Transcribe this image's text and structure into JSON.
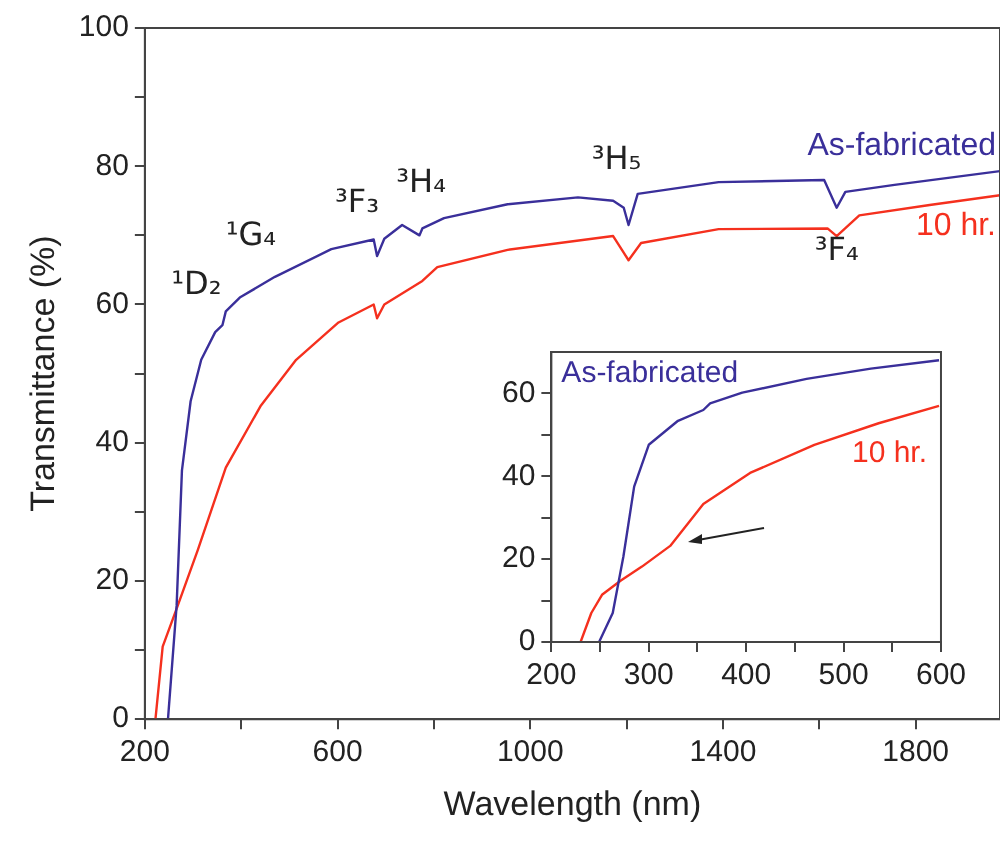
{
  "chart_data": [
    {
      "type": "line",
      "xlabel": "Wavelength (nm)",
      "ylabel": "Transmittance (%)",
      "xlim": [
        200,
        1975
      ],
      "ylim": [
        0,
        100
      ],
      "xticks": [
        200,
        {
          "value": 400,
          "label": null
        },
        600,
        {
          "value": 800,
          "label": null
        },
        1000,
        {
          "value": 1200,
          "label": null
        },
        1400,
        {
          "value": 1600,
          "label": null
        },
        1800
      ],
      "yticks": [
        0,
        {
          "value": 10,
          "label": null
        },
        20,
        {
          "value": 30,
          "label": null
        },
        40,
        {
          "value": 50,
          "label": null
        },
        60,
        {
          "value": 70,
          "label": null
        },
        80,
        {
          "value": 90,
          "label": null
        },
        100
      ],
      "legend": false,
      "annotations": [
        {
          "text": "¹D₂",
          "x": 365,
          "y": 57
        },
        {
          "text": "¹G₄",
          "x": 470,
          "y": 64
        },
        {
          "text": "³F₃",
          "x": 682,
          "y": 67
        },
        {
          "text": "³H₄",
          "x": 790,
          "y": 70.5
        },
        {
          "text": "³H₅",
          "x": 1204,
          "y": 71.5
        },
        {
          "text": "³F₄",
          "x": 1636,
          "y": 74
        }
      ],
      "series": [
        {
          "name": "As-fabricated",
          "color": "#3a2f9a",
          "x": [
            248,
            266,
            277,
            295,
            317,
            346,
            361,
            368,
            397,
            470,
            587,
            675,
            682,
            697,
            734,
            770,
            776,
            821,
            953,
            1099,
            1172,
            1194,
            1204,
            1223,
            1391,
            1610,
            1636,
            1654,
            1756,
            1975
          ],
          "values": [
            0,
            16.5,
            36,
            46,
            52,
            56,
            57,
            59,
            61,
            64,
            68,
            69.4,
            67,
            69.5,
            71.5,
            70,
            71,
            72.5,
            74.5,
            75.5,
            75,
            74,
            71.5,
            76,
            77.7,
            78,
            74,
            76.3,
            77.3,
            79.3
          ]
        },
        {
          "name": "10 hr.",
          "color": "#f5301e",
          "x": [
            222,
            237,
            266,
            310,
            368,
            441,
            514,
            602,
            675,
            682,
            697,
            776,
            807,
            953,
            1172,
            1204,
            1230,
            1391,
            1617,
            1636,
            1683,
            1829,
            1975
          ],
          "values": [
            0,
            10.5,
            16,
            24.5,
            36.4,
            45.4,
            52,
            57.4,
            60,
            58,
            60,
            63.4,
            65.4,
            67.9,
            69.9,
            66.4,
            68.9,
            70.9,
            71,
            69.9,
            72.9,
            74.4,
            75.8
          ]
        }
      ]
    },
    {
      "type": "line",
      "xlim": [
        200,
        600
      ],
      "ylim": [
        0,
        70
      ],
      "xticks": [
        200,
        {
          "value": 250,
          "label": null
        },
        300,
        {
          "value": 350,
          "label": null
        },
        400,
        {
          "value": 450,
          "label": null
        },
        500,
        {
          "value": 550,
          "label": null
        },
        600
      ],
      "yticks": [
        0,
        {
          "value": 10,
          "label": null
        },
        20,
        {
          "value": 30,
          "label": null
        },
        40,
        {
          "value": 50,
          "label": null
        },
        60
      ],
      "legend": false,
      "series": [
        {
          "name": "As-fabricated",
          "color": "#3a2f9a",
          "x": [
            249,
            263,
            274,
            285,
            300,
            330,
            356,
            363,
            396,
            462,
            528,
            598
          ],
          "values": [
            0,
            7,
            20.7,
            37.5,
            47.6,
            53.4,
            56,
            57.6,
            60.2,
            63.5,
            66,
            68
          ]
        },
        {
          "name": "10 hr.",
          "color": "#f5301e",
          "x": [
            230,
            241,
            252,
            271,
            293,
            322,
            356,
            404,
            470,
            536,
            598
          ],
          "values": [
            0,
            7,
            11.4,
            14.8,
            18.2,
            23.2,
            33.3,
            40.8,
            47.6,
            52.8,
            57
          ]
        }
      ]
    }
  ]
}
